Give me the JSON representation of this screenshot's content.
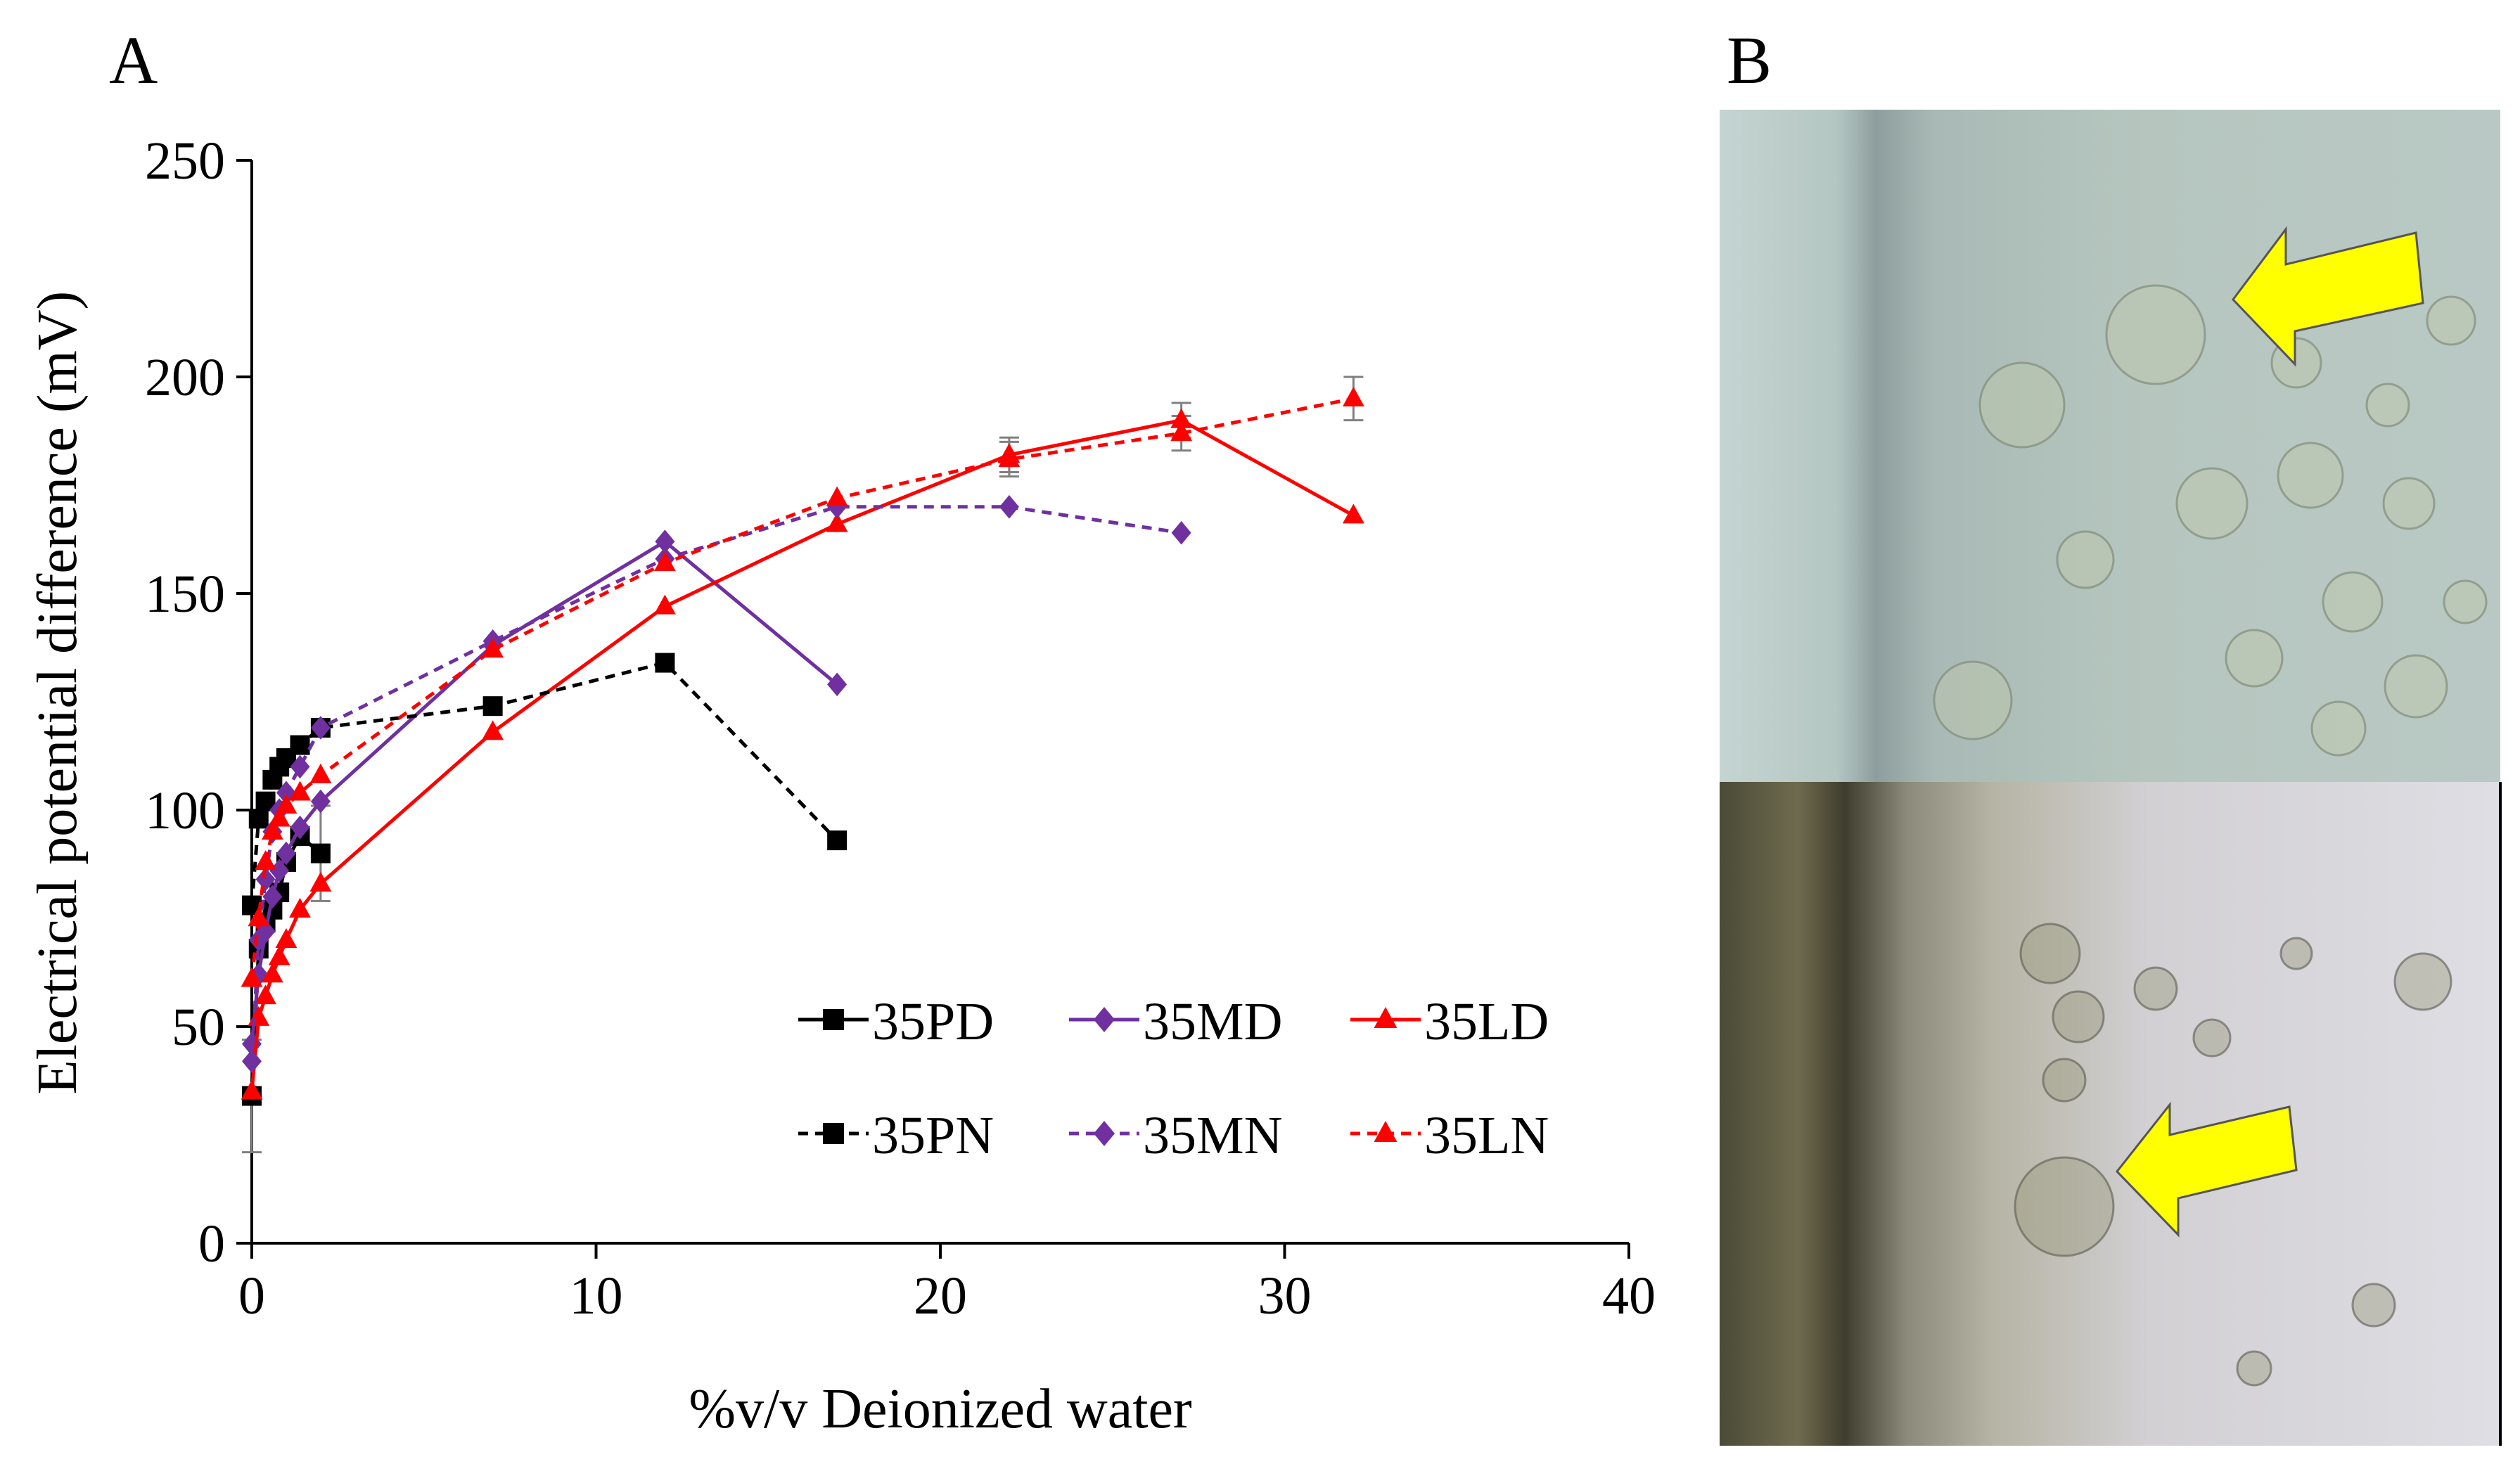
{
  "panel_a_label": "A",
  "panel_b_label": "B",
  "chart_data": {
    "type": "line",
    "title": "",
    "xlabel": "%v/v Deionized water",
    "ylabel": "Electrical potential difference (mV)",
    "xlim": [
      0,
      40
    ],
    "ylim": [
      0,
      250
    ],
    "xticks": [
      0,
      10,
      20,
      30,
      40
    ],
    "yticks": [
      0,
      50,
      100,
      150,
      200,
      250
    ],
    "grid": false,
    "legend_position": "bottom-right",
    "series": [
      {
        "name": "35PD",
        "color": "#000000",
        "marker": "square",
        "dashed": false,
        "x": [
          0,
          0.2,
          0.4,
          0.6,
          0.8,
          1.0,
          1.4,
          2.0
        ],
        "y": [
          34,
          68,
          74,
          77,
          81,
          88,
          94,
          90
        ]
      },
      {
        "name": "35MD",
        "color": "#7030A0",
        "marker": "diamond",
        "dashed": false,
        "x": [
          0,
          0.2,
          0.4,
          0.6,
          0.8,
          1.0,
          1.4,
          2.0,
          7,
          12,
          17
        ],
        "y": [
          46,
          62,
          72,
          80,
          86,
          90,
          96,
          102,
          138,
          162,
          129
        ]
      },
      {
        "name": "35LD",
        "color": "#FF0000",
        "marker": "triangle",
        "dashed": false,
        "x": [
          0,
          0.2,
          0.4,
          0.6,
          0.8,
          1.0,
          1.4,
          2.0,
          7,
          12,
          17,
          22,
          27,
          32
        ],
        "y": [
          35,
          52,
          57,
          62,
          66,
          70,
          77,
          83,
          118,
          147,
          166,
          182,
          190,
          168
        ]
      },
      {
        "name": "35PN",
        "color": "#000000",
        "marker": "square",
        "dashed": true,
        "x": [
          0,
          0.2,
          0.4,
          0.6,
          0.8,
          1.0,
          1.4,
          2.0,
          7,
          12,
          17
        ],
        "y": [
          78,
          98,
          102,
          107,
          110,
          112,
          115,
          119,
          124,
          134,
          93
        ]
      },
      {
        "name": "35MN",
        "color": "#7030A0",
        "marker": "diamond",
        "dashed": true,
        "x": [
          0,
          0.2,
          0.4,
          0.6,
          0.8,
          1.0,
          1.4,
          2.0,
          7,
          12,
          17,
          22,
          27
        ],
        "y": [
          42,
          70,
          84,
          95,
          100,
          104,
          110,
          119,
          139,
          158,
          170,
          170,
          164
        ]
      },
      {
        "name": "35LN",
        "color": "#FF0000",
        "marker": "triangle",
        "dashed": true,
        "x": [
          0,
          0.2,
          0.4,
          0.6,
          0.8,
          1.0,
          1.4,
          2.0,
          7,
          12,
          17,
          22,
          27,
          32
        ],
        "y": [
          61,
          75,
          88,
          95,
          98,
          101,
          104,
          108,
          137,
          157,
          172,
          181,
          187,
          195
        ]
      }
    ],
    "error_bars": [
      {
        "series": "35LN",
        "x": 22,
        "err": 4
      },
      {
        "series": "35LN",
        "x": 27,
        "err": 4
      },
      {
        "series": "35LN",
        "x": 32,
        "err": 5
      },
      {
        "series": "35LD",
        "x": 22,
        "err": 4
      },
      {
        "series": "35LD",
        "x": 27,
        "err": 4
      },
      {
        "series": "35PD",
        "x": 2,
        "err": 11
      },
      {
        "series": "35PD",
        "x": 0,
        "err": 13
      }
    ]
  },
  "micrographs": {
    "top_arrow": "yellow-arrow",
    "bottom_arrow": "yellow-arrow"
  }
}
